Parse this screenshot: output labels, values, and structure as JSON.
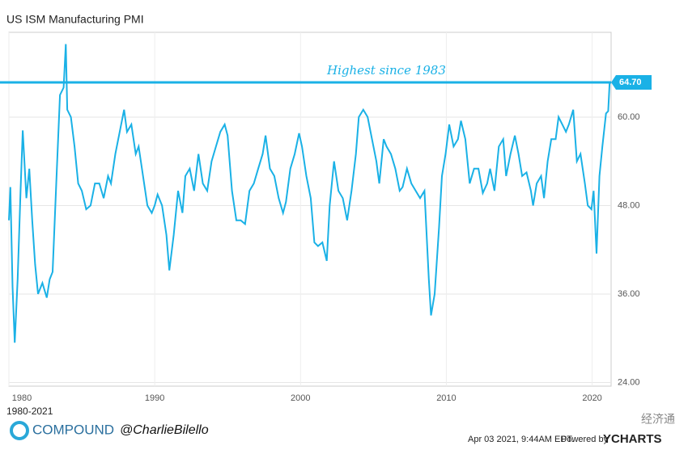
{
  "chart_data": {
    "type": "line",
    "title": "US ISM Manufacturing PMI",
    "range_label": "1980-2021",
    "annotation": "Highest since 1983",
    "reference_line": {
      "value": 64.7,
      "label": "64.70"
    },
    "brand": "COMPOUND",
    "handle": "@CharlieBilello",
    "timestamp": "Apr 03 2021, 9:44AM EDT.",
    "powered_by": "Powered by",
    "source": "YCHARTS",
    "watermark": "经济通",
    "color": "#1ab1e6",
    "xlim": [
      1980,
      2021.3
    ],
    "xticks": [
      1980,
      1990,
      2000,
      2010,
      2020
    ],
    "ylim": [
      23.5,
      71.5
    ],
    "yticks": [
      {
        "value": 24,
        "label": "24.00"
      },
      {
        "value": 36,
        "label": "36.00"
      },
      {
        "value": 48,
        "label": "48.00"
      },
      {
        "value": 60,
        "label": "60.00"
      }
    ],
    "grid": true,
    "series": [
      {
        "name": "US ISM Manufacturing PMI",
        "color": "#1ab1e6",
        "x": [
          1980.0,
          1980.1,
          1980.25,
          1980.4,
          1980.6,
          1980.8,
          1980.95,
          1981.2,
          1981.4,
          1981.6,
          1981.8,
          1982.0,
          1982.3,
          1982.6,
          1982.8,
          1983.0,
          1983.25,
          1983.5,
          1983.75,
          1983.9,
          1984.0,
          1984.25,
          1984.5,
          1984.75,
          1985.0,
          1985.3,
          1985.6,
          1985.9,
          1986.2,
          1986.5,
          1986.8,
          1987.0,
          1987.3,
          1987.6,
          1987.9,
          1988.1,
          1988.4,
          1988.7,
          1988.9,
          1989.2,
          1989.5,
          1989.8,
          1990.0,
          1990.2,
          1990.5,
          1990.8,
          1991.0,
          1991.3,
          1991.6,
          1991.9,
          1992.1,
          1992.4,
          1992.7,
          1993.0,
          1993.3,
          1993.6,
          1993.9,
          1994.2,
          1994.5,
          1994.8,
          1995.0,
          1995.3,
          1995.6,
          1995.9,
          1996.2,
          1996.5,
          1996.8,
          1997.1,
          1997.4,
          1997.6,
          1997.9,
          1998.2,
          1998.5,
          1998.8,
          1999.0,
          1999.3,
          1999.6,
          1999.9,
          2000.1,
          2000.4,
          2000.7,
          2000.95,
          2001.2,
          2001.5,
          2001.8,
          2002.0,
          2002.3,
          2002.6,
          2002.9,
          2003.2,
          2003.5,
          2003.8,
          2004.0,
          2004.3,
          2004.6,
          2004.9,
          2005.2,
          2005.4,
          2005.7,
          2005.9,
          2006.2,
          2006.5,
          2006.8,
          2007.0,
          2007.3,
          2007.6,
          2007.9,
          2008.2,
          2008.5,
          2008.8,
          2008.95,
          2009.2,
          2009.5,
          2009.7,
          2009.95,
          2010.2,
          2010.5,
          2010.8,
          2011.0,
          2011.3,
          2011.6,
          2011.9,
          2012.2,
          2012.5,
          2012.8,
          2013.0,
          2013.3,
          2013.6,
          2013.9,
          2014.1,
          2014.4,
          2014.7,
          2014.95,
          2015.2,
          2015.5,
          2015.8,
          2015.95,
          2016.2,
          2016.5,
          2016.7,
          2016.95,
          2017.2,
          2017.5,
          2017.7,
          2017.95,
          2018.2,
          2018.4,
          2018.7,
          2018.95,
          2019.2,
          2019.5,
          2019.7,
          2019.95,
          2020.1,
          2020.3,
          2020.5,
          2020.7,
          2020.95,
          2021.1,
          2021.2
        ],
        "values": [
          46.0,
          50.5,
          37,
          29.4,
          38,
          50,
          58.2,
          49,
          53,
          46,
          40,
          36,
          37.5,
          35.5,
          38,
          39,
          51,
          63,
          64,
          69.9,
          61,
          60,
          56,
          51,
          50,
          47.5,
          48,
          51,
          51,
          49,
          52,
          51,
          55,
          58,
          61,
          58,
          59,
          55,
          56,
          52,
          48,
          47,
          48,
          49.5,
          48,
          44,
          39.2,
          44,
          50,
          47,
          52,
          53,
          50,
          55,
          51,
          50,
          54,
          56,
          58,
          59,
          57.5,
          50,
          46,
          46,
          45.5,
          50,
          51,
          53,
          55,
          57.5,
          53,
          52,
          49,
          47,
          48.5,
          53,
          55,
          57.8,
          56,
          52,
          49,
          43,
          42.5,
          43,
          40.5,
          48,
          54,
          50,
          49,
          46,
          50,
          55,
          60,
          61,
          60,
          57,
          54,
          51,
          57,
          56,
          55,
          53,
          50,
          50.5,
          53,
          51,
          50,
          49,
          50,
          38,
          33.1,
          36,
          45,
          52,
          55,
          59,
          56,
          57,
          59.5,
          57,
          51,
          53,
          53,
          49.7,
          51,
          53,
          50,
          56,
          57,
          52,
          55,
          57.5,
          55,
          52,
          52.5,
          50,
          48,
          51,
          52,
          49,
          54,
          57,
          57,
          60,
          59,
          58,
          59,
          61,
          54,
          55,
          51,
          48,
          47.5,
          50,
          41.5,
          52,
          56,
          60.5,
          60.8,
          64.7
        ]
      }
    ]
  }
}
